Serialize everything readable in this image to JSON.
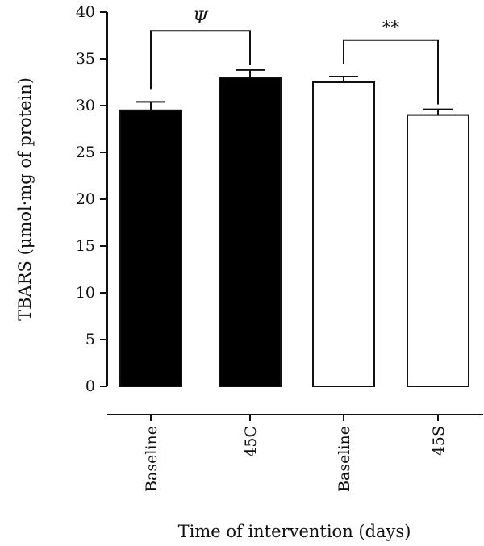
{
  "chart_data": {
    "type": "bar",
    "categories": [
      "Baseline",
      "45C",
      "Baseline",
      "45S"
    ],
    "values": [
      29.5,
      33.0,
      32.5,
      29.0
    ],
    "errors": [
      0.9,
      0.8,
      0.6,
      0.6
    ],
    "bar_fills": [
      "#000000",
      "#000000",
      "#ffffff",
      "#ffffff"
    ],
    "xlabel": "Time of intervention (days)",
    "ylabel": "TBARS (μmol·mg of protein)",
    "ylim": [
      0,
      40
    ],
    "yticks": [
      "0",
      "5",
      "10",
      "15",
      "20",
      "25",
      "30",
      "35",
      "40"
    ],
    "grid": false,
    "annotations": [
      {
        "from": 0,
        "to": 1,
        "label": "Ψ",
        "level": 38
      },
      {
        "from": 2,
        "to": 3,
        "label": "**",
        "level": 37
      }
    ]
  }
}
